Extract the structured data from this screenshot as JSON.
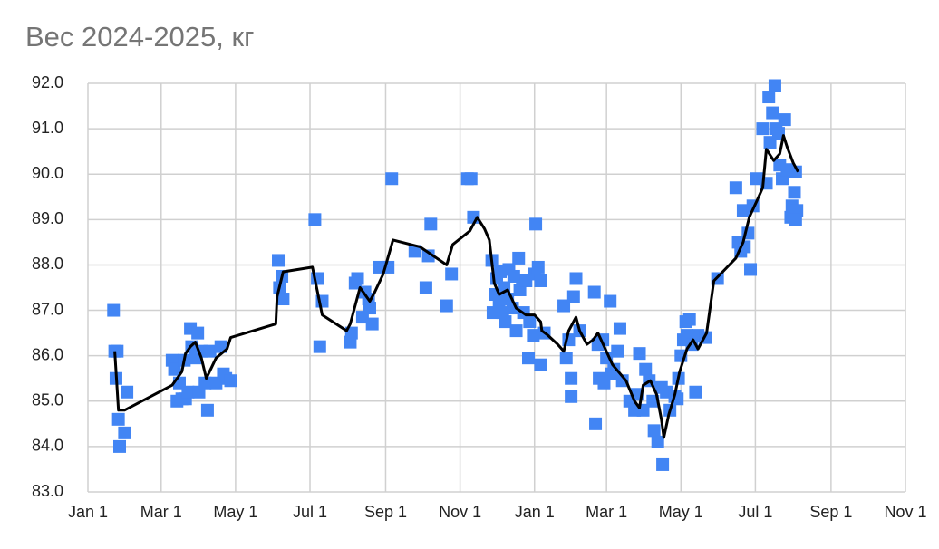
{
  "chart_data": {
    "type": "scatter",
    "title": "Вес 2024-2025, кг",
    "grid": true,
    "xlim": [
      0,
      670
    ],
    "ylim": [
      83,
      92
    ],
    "xticks": [
      {
        "value": 0,
        "label": "Jan 1"
      },
      {
        "value": 60,
        "label": "Mar 1"
      },
      {
        "value": 121,
        "label": "May 1"
      },
      {
        "value": 182,
        "label": "Jul 1"
      },
      {
        "value": 244,
        "label": "Sep 1"
      },
      {
        "value": 305,
        "label": "Nov 1"
      },
      {
        "value": 366,
        "label": "Jan 1"
      },
      {
        "value": 425,
        "label": "Mar 1"
      },
      {
        "value": 486,
        "label": "May 1"
      },
      {
        "value": 547,
        "label": "Jul 1"
      },
      {
        "value": 609,
        "label": "Sep 1"
      },
      {
        "value": 670,
        "label": "Nov 1"
      }
    ],
    "yticks": [
      {
        "value": 83,
        "label": "83.0"
      },
      {
        "value": 84,
        "label": "84.0"
      },
      {
        "value": 85,
        "label": "85.0"
      },
      {
        "value": 86,
        "label": "86.0"
      },
      {
        "value": 87,
        "label": "87.0"
      },
      {
        "value": 88,
        "label": "88.0"
      },
      {
        "value": 89,
        "label": "89.0"
      },
      {
        "value": 90,
        "label": "90.0"
      },
      {
        "value": 91,
        "label": "91.0"
      },
      {
        "value": 92,
        "label": "92.0"
      }
    ],
    "series": [
      {
        "type": "scatter",
        "color": "#4285f4",
        "x": [
          21,
          22,
          24,
          23,
          25,
          26,
          30,
          32,
          69,
          71,
          73,
          75,
          77,
          79,
          80,
          82,
          84,
          85,
          88,
          90,
          91,
          93,
          96,
          98,
          100,
          105,
          109,
          111,
          113,
          117,
          156,
          157,
          159,
          160,
          186,
          188,
          190,
          192,
          215,
          216,
          219,
          221,
          225,
          227,
          230,
          233,
          231,
          239,
          246,
          249,
          268,
          277,
          281,
          279,
          294,
          298,
          311,
          314,
          316,
          331,
          332,
          334,
          335,
          337,
          338,
          340,
          341,
          342,
          344,
          345,
          348,
          349,
          351,
          353,
          354,
          356,
          357,
          359,
          361,
          362,
          365,
          366,
          367,
          369,
          371,
          371,
          374,
          390,
          392,
          394,
          396,
          396,
          398,
          400,
          403,
          415,
          416,
          418,
          419,
          422,
          423,
          425,
          428,
          429,
          431,
          434,
          436,
          438,
          444,
          448,
          450,
          452,
          455,
          457,
          460,
          463,
          464,
          467,
          470,
          471,
          474,
          477,
          481,
          483,
          484,
          486,
          488,
          490,
          491,
          493,
          495,
          498,
          500,
          506,
          516,
          531,
          533,
          535,
          537,
          538,
          541,
          543,
          545,
          548,
          553,
          556,
          558,
          559,
          561,
          563,
          564,
          566,
          567,
          569,
          571,
          573,
          576,
          577,
          579,
          580,
          581,
          580
        ],
        "values": [
          87.0,
          86.1,
          86.1,
          85.5,
          84.6,
          84.0,
          84.3,
          85.2,
          85.9,
          85.7,
          85.0,
          85.4,
          85.05,
          85.9,
          85.05,
          85.2,
          86.6,
          86.2,
          85.95,
          86.5,
          85.2,
          86.1,
          85.4,
          84.8,
          86.1,
          85.4,
          86.2,
          85.6,
          85.5,
          85.45,
          88.1,
          87.5,
          87.75,
          87.25,
          89.0,
          87.7,
          86.2,
          87.2,
          86.3,
          86.5,
          87.6,
          87.7,
          86.85,
          87.4,
          87.25,
          86.7,
          87.05,
          87.95,
          87.95,
          89.9,
          88.3,
          87.5,
          88.9,
          88.2,
          87.1,
          87.8,
          89.9,
          89.9,
          89.05,
          88.1,
          86.95,
          87.35,
          87.7,
          87.2,
          87.85,
          86.95,
          87.5,
          86.75,
          87.25,
          87.9,
          87.05,
          87.75,
          86.55,
          88.15,
          87.45,
          87.65,
          86.95,
          87.65,
          85.95,
          86.75,
          86.45,
          87.8,
          88.9,
          87.95,
          85.8,
          87.65,
          86.5,
          87.1,
          85.95,
          86.35,
          85.5,
          85.1,
          87.3,
          87.7,
          86.55,
          87.4,
          84.5,
          86.25,
          85.5,
          86.35,
          85.4,
          85.95,
          87.2,
          85.6,
          85.7,
          86.1,
          86.6,
          85.45,
          85.0,
          84.8,
          85.15,
          86.05,
          84.8,
          85.7,
          85.45,
          85.0,
          84.35,
          84.1,
          85.3,
          83.6,
          85.2,
          84.8,
          85.1,
          85.05,
          85.5,
          86.0,
          86.35,
          86.75,
          86.45,
          86.8,
          86.25,
          85.2,
          86.45,
          86.4,
          87.7,
          89.7,
          88.5,
          88.3,
          89.2,
          88.4,
          88.7,
          87.9,
          89.3,
          89.9,
          91.0,
          89.8,
          91.7,
          90.7,
          91.35,
          91.95,
          91.0,
          90.9,
          90.2,
          89.9,
          91.2,
          90.1,
          89.05,
          89.3,
          89.6,
          90.05,
          89.2,
          89.0
        ]
      },
      {
        "type": "line",
        "color": "#000000",
        "x": [
          22,
          25,
          30,
          69,
          77,
          80,
          84,
          88,
          93,
          97,
          105,
          114,
          117,
          154,
          155,
          160,
          184,
          192,
          212,
          215,
          223,
          231,
          235,
          242,
          250,
          272,
          294,
          299,
          313,
          319,
          325,
          329,
          333,
          337,
          344,
          351,
          359,
          366,
          371,
          372,
          377,
          385,
          390,
          394,
          400,
          403,
          409,
          414,
          418,
          424,
          430,
          441,
          448,
          452,
          455,
          461,
          466,
          470,
          472,
          476,
          481,
          485,
          491,
          496,
          500,
          507,
          513,
          522,
          531,
          537,
          542,
          548,
          553,
          556,
          562,
          567,
          570,
          573,
          578,
          582
        ],
        "values": [
          86.1,
          84.8,
          84.8,
          85.35,
          85.65,
          86.05,
          86.2,
          86.3,
          85.95,
          85.5,
          85.95,
          86.15,
          86.4,
          86.7,
          87.3,
          87.85,
          87.95,
          86.9,
          86.55,
          86.7,
          87.5,
          87.2,
          87.4,
          87.8,
          88.55,
          88.4,
          88.0,
          88.45,
          88.75,
          89.05,
          88.8,
          88.55,
          87.6,
          87.35,
          87.45,
          87.05,
          86.9,
          86.9,
          86.75,
          86.55,
          86.45,
          86.25,
          86.1,
          86.55,
          86.85,
          86.55,
          86.25,
          86.35,
          86.5,
          86.15,
          85.8,
          85.45,
          85.0,
          84.85,
          85.35,
          85.45,
          85.15,
          84.6,
          84.2,
          84.7,
          85.15,
          85.65,
          86.15,
          86.35,
          86.15,
          86.5,
          87.65,
          87.9,
          88.15,
          88.5,
          89.05,
          89.4,
          89.7,
          90.55,
          90.3,
          90.45,
          90.85,
          90.6,
          90.25,
          90.05
        ]
      }
    ]
  }
}
